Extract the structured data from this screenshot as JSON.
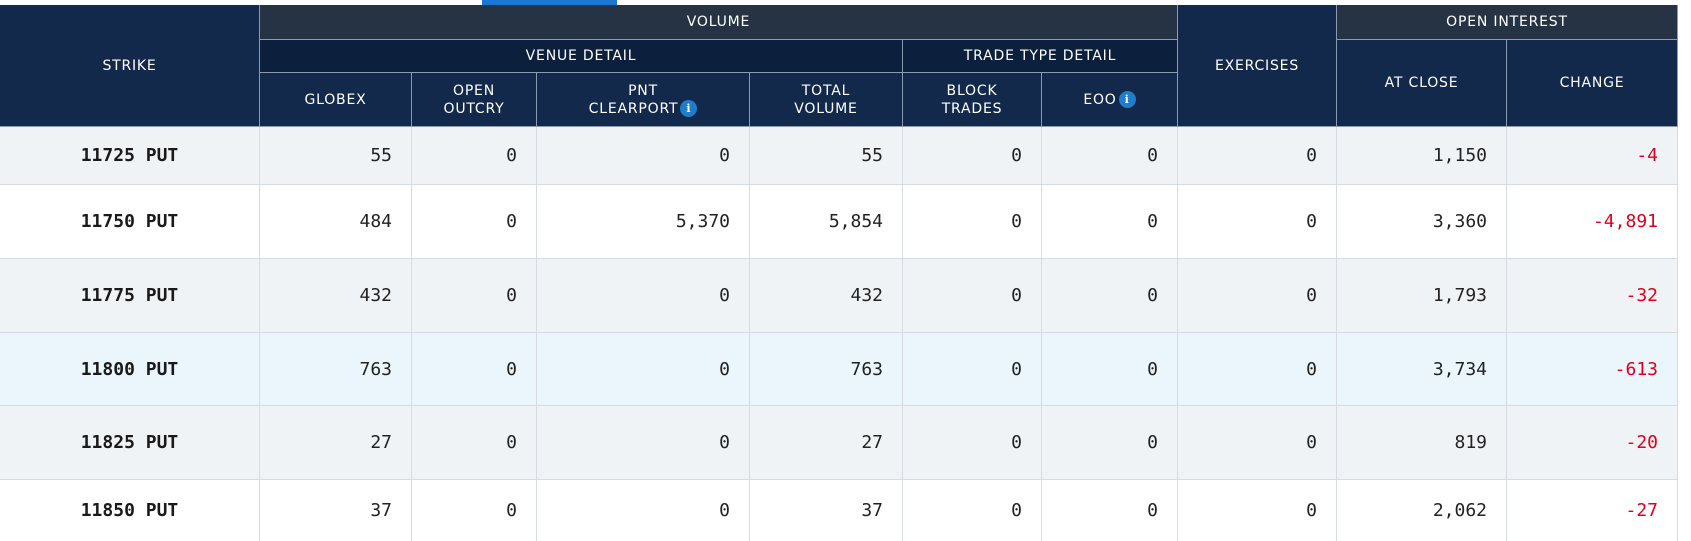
{
  "header": {
    "strike": "STRIKE",
    "volume": "VOLUME",
    "venue_detail": "VENUE DETAIL",
    "trade_type_detail": "TRADE TYPE DETAIL",
    "exercises": "EXERCISES",
    "open_interest": "OPEN INTEREST",
    "globex": "GLOBEX",
    "open_outcry": [
      "OPEN",
      "OUTCRY"
    ],
    "pnt_clearport": [
      "PNT",
      "CLEARPORT"
    ],
    "total_volume": [
      "TOTAL",
      "VOLUME"
    ],
    "block_trades": [
      "BLOCK",
      "TRADES"
    ],
    "eoo": "EOO",
    "at_close": "AT CLOSE",
    "change": "CHANGE",
    "info_icon": "i"
  },
  "rows": [
    {
      "strike": "11725 PUT",
      "globex": "55",
      "open_outcry": "0",
      "pnt_clearport": "0",
      "total_volume": "55",
      "block_trades": "0",
      "eoo": "0",
      "exercises": "0",
      "at_close": "1,150",
      "change": "-4"
    },
    {
      "strike": "11750 PUT",
      "globex": "484",
      "open_outcry": "0",
      "pnt_clearport": "5,370",
      "total_volume": "5,854",
      "block_trades": "0",
      "eoo": "0",
      "exercises": "0",
      "at_close": "3,360",
      "change": "-4,891"
    },
    {
      "strike": "11775 PUT",
      "globex": "432",
      "open_outcry": "0",
      "pnt_clearport": "0",
      "total_volume": "432",
      "block_trades": "0",
      "eoo": "0",
      "exercises": "0",
      "at_close": "1,793",
      "change": "-32"
    },
    {
      "strike": "11800 PUT",
      "globex": "763",
      "open_outcry": "0",
      "pnt_clearport": "0",
      "total_volume": "763",
      "block_trades": "0",
      "eoo": "0",
      "exercises": "0",
      "at_close": "3,734",
      "change": "-613"
    },
    {
      "strike": "11825 PUT",
      "globex": "27",
      "open_outcry": "0",
      "pnt_clearport": "0",
      "total_volume": "27",
      "block_trades": "0",
      "eoo": "0",
      "exercises": "0",
      "at_close": "819",
      "change": "-20"
    },
    {
      "strike": "11850 PUT",
      "globex": "37",
      "open_outcry": "0",
      "pnt_clearport": "0",
      "total_volume": "37",
      "block_trades": "0",
      "eoo": "0",
      "exercises": "0",
      "at_close": "2,062",
      "change": "-27"
    }
  ],
  "colors": {
    "header_dark": "#13294b",
    "header_sub": "#0c1f3d",
    "header_group": "#253345",
    "negative": "#e0001b",
    "accent_tab": "#1976d2",
    "info_icon": "#1f7dc9"
  }
}
